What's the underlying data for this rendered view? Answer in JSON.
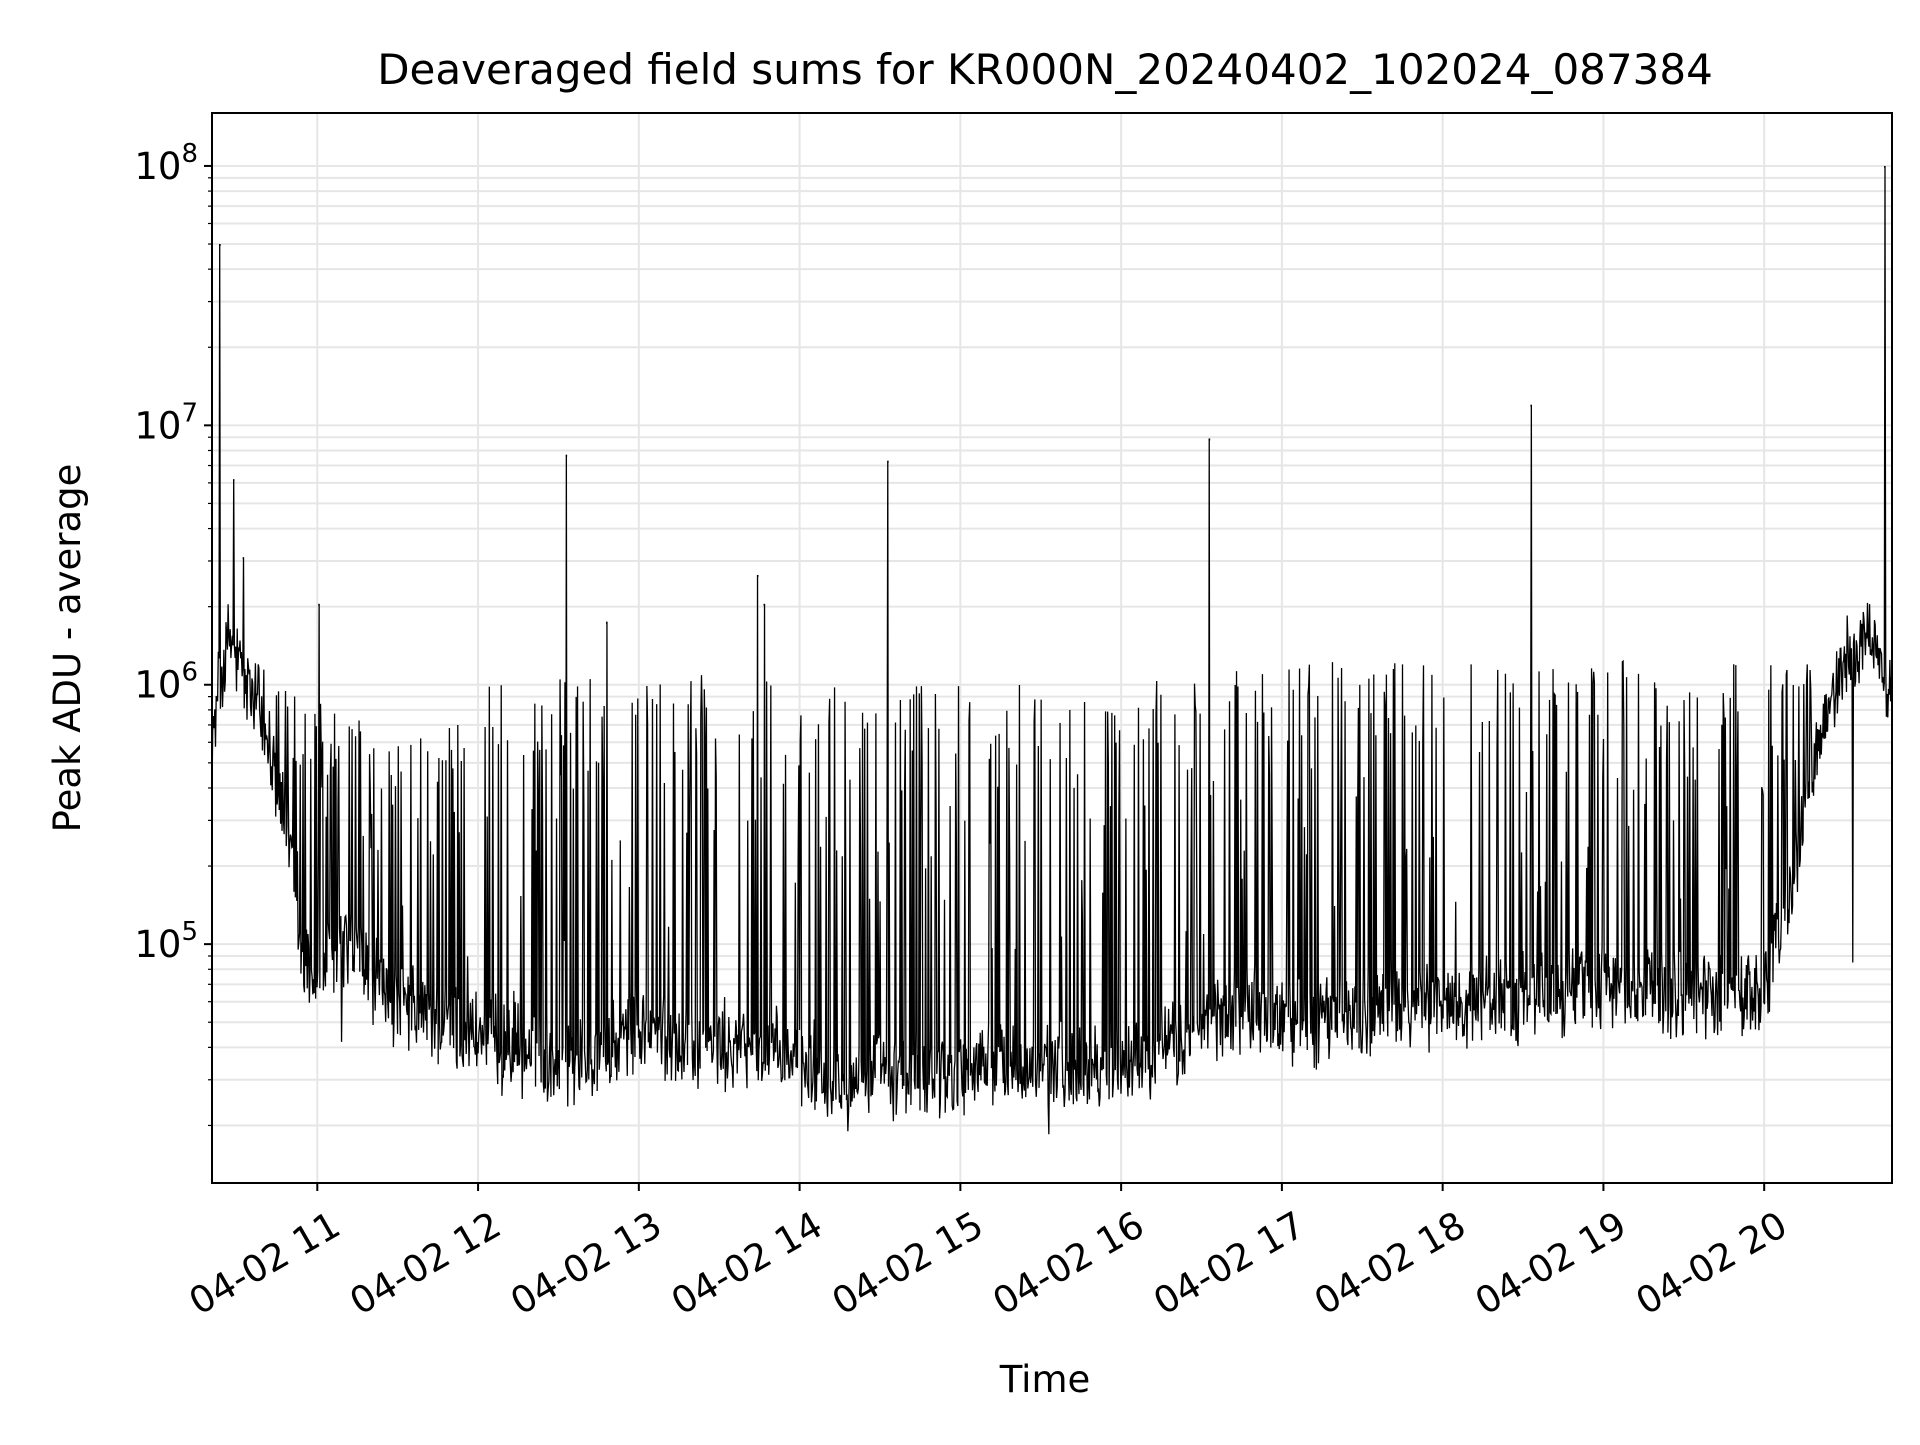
{
  "chart_data": {
    "type": "line",
    "title": "Deaveraged field sums for KR000N_20240402_102024_087384",
    "xlabel": "Time",
    "ylabel": "Peak ADU - average",
    "yscale": "log",
    "ylim": [
      12000,
      160000000
    ],
    "xlim_hours": [
      10.345,
      20.795
    ],
    "grid": true,
    "legend": "none",
    "line_color": "#000000",
    "grid_color": "#e6e6e6",
    "x_ticks": [
      {
        "hour": 11,
        "label": "04-02 11"
      },
      {
        "hour": 12,
        "label": "04-02 12"
      },
      {
        "hour": 13,
        "label": "04-02 13"
      },
      {
        "hour": 14,
        "label": "04-02 14"
      },
      {
        "hour": 15,
        "label": "04-02 15"
      },
      {
        "hour": 16,
        "label": "04-02 16"
      },
      {
        "hour": 17,
        "label": "04-02 17"
      },
      {
        "hour": 18,
        "label": "04-02 18"
      },
      {
        "hour": 19,
        "label": "04-02 19"
      },
      {
        "hour": 20,
        "label": "04-02 20"
      }
    ],
    "y_ticks": [
      {
        "value": 100000,
        "base": "10",
        "exp": "5"
      },
      {
        "value": 1000000,
        "base": "10",
        "exp": "6"
      },
      {
        "value": 10000000,
        "base": "10",
        "exp": "7"
      },
      {
        "value": 100000000,
        "base": "10",
        "exp": "8"
      }
    ],
    "series": [
      {
        "name": "Peak ADU - average",
        "baseline": [
          [
            10.345,
            600000
          ],
          [
            10.45,
            1500000
          ],
          [
            10.55,
            1000000
          ],
          [
            10.7,
            600000
          ],
          [
            10.82,
            250000
          ],
          [
            10.9,
            90000
          ],
          [
            11.0,
            75000
          ],
          [
            11.2,
            100000
          ],
          [
            11.45,
            60000
          ],
          [
            11.6,
            55000
          ],
          [
            11.8,
            48000
          ],
          [
            12.0,
            45000
          ],
          [
            12.3,
            38000
          ],
          [
            12.5,
            36000
          ],
          [
            12.8,
            37000
          ],
          [
            13.0,
            48000
          ],
          [
            13.2,
            42000
          ],
          [
            13.5,
            40000
          ],
          [
            13.8,
            38000
          ],
          [
            14.0,
            34000
          ],
          [
            14.3,
            31000
          ],
          [
            14.6,
            30000
          ],
          [
            14.9,
            31000
          ],
          [
            15.2,
            35000
          ],
          [
            15.5,
            32000
          ],
          [
            15.8,
            34000
          ],
          [
            16.1,
            36000
          ],
          [
            16.4,
            42000
          ],
          [
            16.6,
            52000
          ],
          [
            16.8,
            56000
          ],
          [
            17.0,
            52000
          ],
          [
            17.2,
            50000
          ],
          [
            17.5,
            55000
          ],
          [
            17.8,
            57000
          ],
          [
            18.0,
            58000
          ],
          [
            18.3,
            62000
          ],
          [
            18.6,
            60000
          ],
          [
            18.9,
            72000
          ],
          [
            19.2,
            64000
          ],
          [
            19.5,
            65000
          ],
          [
            19.8,
            62000
          ],
          [
            20.0,
            65000
          ],
          [
            20.2,
            200000
          ],
          [
            20.35,
            650000
          ],
          [
            20.5,
            1200000
          ],
          [
            20.65,
            1600000
          ],
          [
            20.795,
            900000
          ]
        ],
        "spike_ceiling": [
          [
            10.345,
            1500000
          ],
          [
            10.5,
            1400000
          ],
          [
            10.8,
            1000000
          ],
          [
            11.0,
            900000
          ],
          [
            11.5,
            600000
          ],
          [
            11.8,
            700000
          ],
          [
            12.0,
            1100000
          ],
          [
            12.5,
            1100000
          ],
          [
            13.0,
            1100000
          ],
          [
            13.5,
            1100000
          ],
          [
            14.0,
            1000000
          ],
          [
            14.5,
            1000000
          ],
          [
            15.0,
            1000000
          ],
          [
            15.5,
            1000000
          ],
          [
            16.0,
            1050000
          ],
          [
            16.5,
            1150000
          ],
          [
            17.0,
            1200000
          ],
          [
            17.5,
            1250000
          ],
          [
            18.0,
            1250000
          ],
          [
            18.5,
            1250000
          ],
          [
            19.0,
            1250000
          ],
          [
            19.5,
            1200000
          ],
          [
            20.0,
            1200000
          ],
          [
            20.3,
            1200000
          ]
        ],
        "peaks": [
          {
            "hour": 10.395,
            "value": 50000000
          },
          {
            "hour": 10.48,
            "value": 6200000
          },
          {
            "hour": 10.54,
            "value": 3100000
          },
          {
            "hour": 11.01,
            "value": 2050000
          },
          {
            "hour": 12.55,
            "value": 7700000
          },
          {
            "hour": 12.8,
            "value": 1750000
          },
          {
            "hour": 13.74,
            "value": 2650000
          },
          {
            "hour": 13.78,
            "value": 2050000
          },
          {
            "hour": 14.55,
            "value": 7300000
          },
          {
            "hour": 16.55,
            "value": 8900000
          },
          {
            "hour": 18.55,
            "value": 12000000
          },
          {
            "hour": 20.75,
            "value": 100000000
          }
        ],
        "dips": [
          {
            "hour": 11.15,
            "value": 42000
          },
          {
            "hour": 12.15,
            "value": 26000
          },
          {
            "hour": 14.3,
            "value": 19000
          },
          {
            "hour": 14.55,
            "value": 19500
          },
          {
            "hour": 15.55,
            "value": 18500
          },
          {
            "hour": 20.55,
            "value": 85000
          }
        ],
        "point_count": 2400,
        "spike_count": 520
      }
    ]
  }
}
